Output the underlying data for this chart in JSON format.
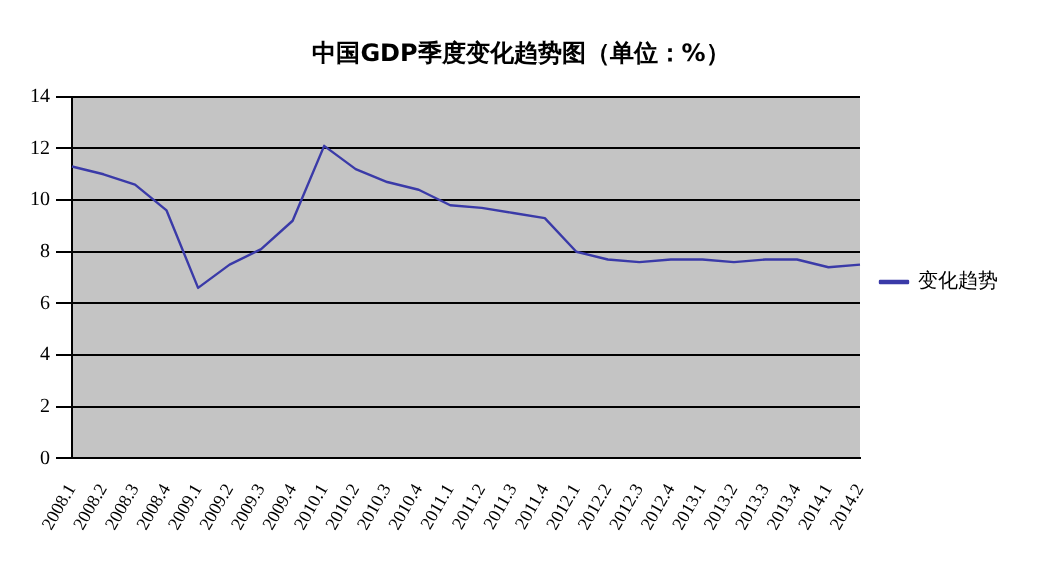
{
  "chart_data": {
    "type": "line",
    "title": "中国GDP季度变化趋势图（单位：%）",
    "categories": [
      "2008.1",
      "2008.2",
      "2008.3",
      "2008.4",
      "2009.1",
      "2009.2",
      "2009.3",
      "2009.4",
      "2010.1",
      "2010.2",
      "2010.3",
      "2010.4",
      "2011.1",
      "2011.2",
      "2011.3",
      "2011.4",
      "2012.1",
      "2012.2",
      "2012.3",
      "2012.4",
      "2013.1",
      "2013.2",
      "2013.3",
      "2013.4",
      "2014.1",
      "2014.2"
    ],
    "series": [
      {
        "name": "变化趋势",
        "color": "#3a3aa8",
        "values": [
          11.3,
          11.0,
          10.6,
          9.6,
          6.6,
          7.5,
          8.1,
          9.2,
          12.1,
          11.2,
          10.7,
          10.4,
          9.8,
          9.7,
          9.5,
          9.3,
          8.0,
          7.7,
          7.6,
          7.7,
          7.7,
          7.6,
          7.7,
          7.7,
          7.4,
          7.5
        ]
      }
    ],
    "ylim": [
      0,
      14
    ],
    "yticks": [
      0,
      2,
      4,
      6,
      8,
      10,
      12,
      14
    ],
    "grid": "y",
    "legend": "right",
    "marker": "none",
    "line_style": "solid"
  }
}
